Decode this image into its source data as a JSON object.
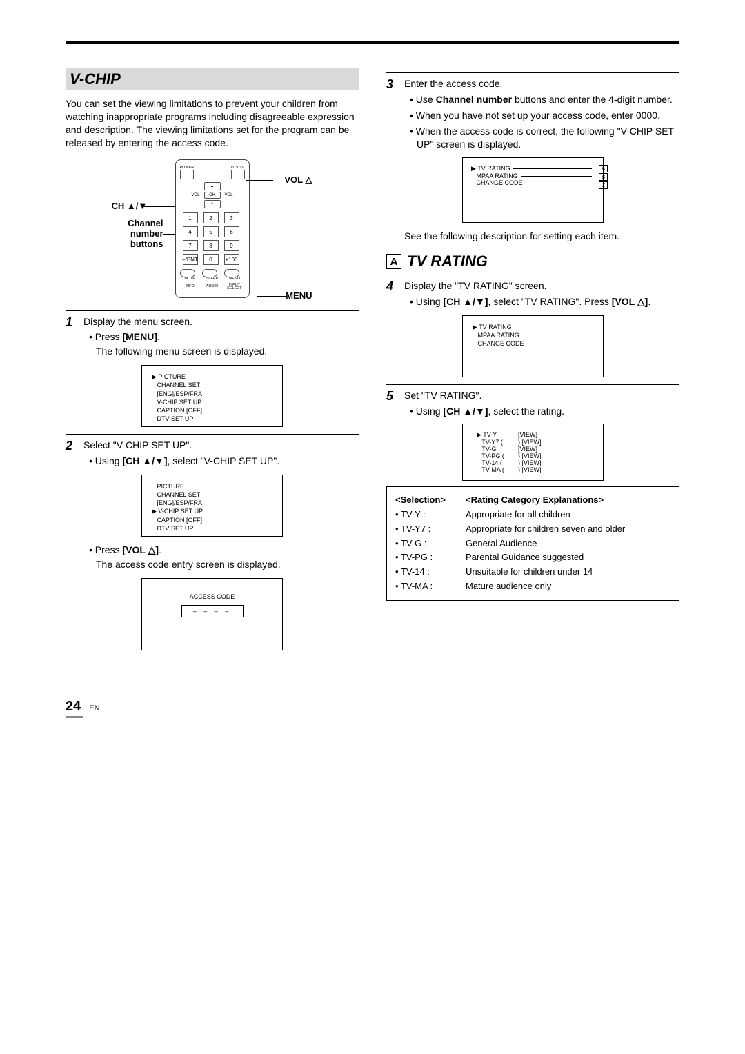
{
  "page": {
    "number": "24",
    "lang": "EN"
  },
  "left": {
    "title": "V-CHIP",
    "intro": "You can set the viewing limitations to prevent your children from watching inappropriate programs including disagreeable expression and description. The viewing limitations set for the program can be released by entering the access code.",
    "remote": {
      "power": "POWER",
      "dtvtv": "DTV/TV",
      "vol": "VOL",
      "ch": "CH",
      "mute": "MUTE",
      "sleep": "SLEEP",
      "menu": "MENU",
      "info": "INFO",
      "audio": "AUDIO",
      "input": "INPUT SELECT",
      "nums": [
        "1",
        "2",
        "3",
        "4",
        "5",
        "6",
        "7",
        "8",
        "9",
        "–/ENT",
        "0",
        "+100"
      ],
      "callouts": {
        "vol": "VOL △",
        "ch": "CH ▲/▼",
        "nums": "Channel number buttons",
        "menu": "MENU"
      }
    },
    "step1": {
      "text": "Display the menu screen.",
      "bullet1a": "Press ",
      "bullet1b": "[MENU]",
      "bullet1c": ".",
      "sub": "The following menu screen is displayed."
    },
    "osd1": [
      "PICTURE",
      "CHANNEL SET",
      "[ENG]/ESP/FRA",
      "V-CHIP SET UP",
      "CAPTION [OFF]",
      "DTV SET UP"
    ],
    "step2": {
      "text": "Select \"V-CHIP SET UP\".",
      "bullet1a": "Using ",
      "bullet1b": "[CH ▲/▼]",
      "bullet1c": ", select \"V-CHIP SET UP\".",
      "bullet2a": "Press ",
      "bullet2b": "[VOL △]",
      "bullet2c": ".",
      "sub2": "The access code entry screen is displayed."
    },
    "osd2_sel": 3,
    "access": {
      "label": "ACCESS CODE",
      "code": "– – – –"
    }
  },
  "right": {
    "step3": {
      "text": "Enter the access code.",
      "b1a": "Use ",
      "b1b": "Channel number",
      "b1c": " buttons and enter the 4-digit number.",
      "b2": "When you have not set up your access code, enter 0000.",
      "b3": "When the access code is correct, the following \"V-CHIP SET UP\" screen is displayed."
    },
    "vchip_osd": {
      "items": [
        "TV RATING",
        "MPAA RATING",
        "CHANGE CODE"
      ],
      "tags": [
        "A",
        "B",
        "C"
      ]
    },
    "see_text": "See the following description for setting each item.",
    "section_a": {
      "tag": "A",
      "title": "TV RATING"
    },
    "step4": {
      "text": "Display the \"TV RATING\" screen.",
      "b1a": "Using ",
      "b1b": "[CH ▲/▼]",
      "b1c": ", select \"TV RATING\". Press ",
      "b1d": "[VOL △]",
      "b1e": "."
    },
    "step5": {
      "text": "Set \"TV RATING\".",
      "b1a": "Using ",
      "b1b": "[CH ▲/▼]",
      "b1c": ", select the rating."
    },
    "rating_osd": [
      {
        "r": "TV-Y",
        "v": "[VIEW]"
      },
      {
        "r": "TV-Y7 (",
        "v": ") [VIEW]"
      },
      {
        "r": "TV-G",
        "v": "[VIEW]"
      },
      {
        "r": "TV-PG (",
        "v": ") [VIEW]"
      },
      {
        "r": "TV-14 (",
        "v": ") [VIEW]"
      },
      {
        "r": "TV-MA (",
        "v": ") [VIEW]"
      }
    ],
    "sel_table": {
      "h1": "<Selection>",
      "h2": "<Rating Category Explanations>",
      "rows": [
        {
          "s": "• TV-Y :",
          "e": "Appropriate for all children"
        },
        {
          "s": "• TV-Y7 :",
          "e": "Appropriate for children seven and older"
        },
        {
          "s": "• TV-G :",
          "e": "General Audience"
        },
        {
          "s": "• TV-PG :",
          "e": "Parental Guidance suggested"
        },
        {
          "s": "• TV-14 :",
          "e": "Unsuitable for children under 14"
        },
        {
          "s": "• TV-MA :",
          "e": "Mature audience only"
        }
      ]
    }
  }
}
